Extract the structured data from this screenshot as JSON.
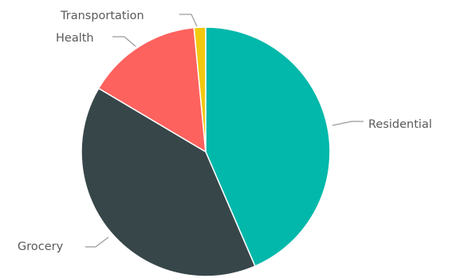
{
  "chart_data": {
    "type": "pie",
    "categories": [
      "Residential",
      "Grocery",
      "Health",
      "Transportation"
    ],
    "values": [
      43.5,
      40.0,
      15.0,
      1.5
    ],
    "colors": [
      "#01b8aa",
      "#374649",
      "#fd625e",
      "#f2c80f"
    ],
    "start": "top",
    "direction": "clockwise",
    "legend": "none (data labels with leader lines)"
  }
}
